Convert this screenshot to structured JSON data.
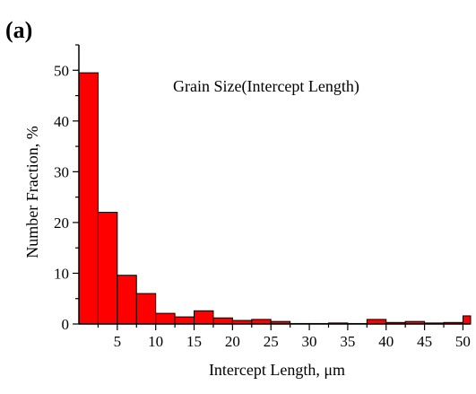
{
  "panel_label": "(a)",
  "chart_data": {
    "type": "bar",
    "annotation": "Grain Size(Intercept Length)",
    "xlabel": "Intercept Length, μm",
    "ylabel": "Number Fraction, %",
    "xlim": [
      0,
      51
    ],
    "ylim": [
      0,
      55
    ],
    "x_ticks": [
      5,
      10,
      15,
      20,
      25,
      30,
      35,
      40,
      45,
      50
    ],
    "y_ticks": [
      0,
      10,
      20,
      30,
      40,
      50
    ],
    "bin_width": 2.5,
    "bins": [
      {
        "x0": 0,
        "x1": 2.5,
        "value": 49.5
      },
      {
        "x0": 2.5,
        "x1": 5,
        "value": 22.0
      },
      {
        "x0": 5,
        "x1": 7.5,
        "value": 9.6
      },
      {
        "x0": 7.5,
        "x1": 10,
        "value": 6.0
      },
      {
        "x0": 10,
        "x1": 12.5,
        "value": 2.1
      },
      {
        "x0": 12.5,
        "x1": 15,
        "value": 1.4
      },
      {
        "x0": 15,
        "x1": 17.5,
        "value": 2.6
      },
      {
        "x0": 17.5,
        "x1": 20,
        "value": 1.2
      },
      {
        "x0": 20,
        "x1": 22.5,
        "value": 0.7
      },
      {
        "x0": 22.5,
        "x1": 25,
        "value": 0.9
      },
      {
        "x0": 25,
        "x1": 27.5,
        "value": 0.5
      },
      {
        "x0": 27.5,
        "x1": 30,
        "value": 0.1
      },
      {
        "x0": 30,
        "x1": 32.5,
        "value": 0.1
      },
      {
        "x0": 32.5,
        "x1": 35,
        "value": 0.2
      },
      {
        "x0": 35,
        "x1": 37.5,
        "value": 0.1
      },
      {
        "x0": 37.5,
        "x1": 40,
        "value": 0.9
      },
      {
        "x0": 40,
        "x1": 42.5,
        "value": 0.3
      },
      {
        "x0": 42.5,
        "x1": 45,
        "value": 0.5
      },
      {
        "x0": 45,
        "x1": 47.5,
        "value": 0.2
      },
      {
        "x0": 47.5,
        "x1": 50,
        "value": 0.3
      },
      {
        "x0": 50,
        "x1": 52.5,
        "value": 1.6
      }
    ],
    "bar_color": "#ff0000",
    "bar_edge_color": "#000000",
    "grid": false,
    "legend": "none"
  }
}
